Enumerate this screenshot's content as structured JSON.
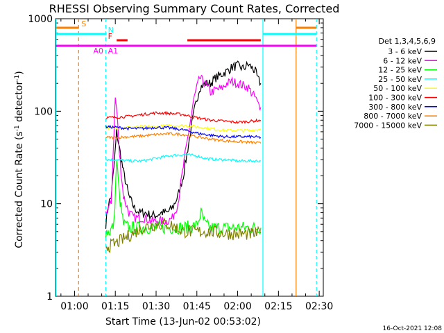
{
  "chart_data": {
    "type": "line",
    "title": "RHESSI Observing Summary Count Rates, Corrected",
    "xlabel": "Start Time (13-Jun-02 00:53:02)",
    "ylabel_main": "Corrected Count Rate (s",
    "ylabel_sup1": "-1",
    "ylabel_mid": " detector",
    "ylabel_sup2": "-1",
    "ylabel_end": ")",
    "yscale": "log",
    "ylim": [
      1,
      1000
    ],
    "xlim_minutes": [
      53.0,
      151.5
    ],
    "yticks": [
      {
        "value": 1,
        "label": "1"
      },
      {
        "value": 10,
        "label": "10"
      },
      {
        "value": 100,
        "label": "100"
      },
      {
        "value": 1000,
        "label": "1000"
      }
    ],
    "xticks": [
      {
        "minutes": 60,
        "label": "01:00"
      },
      {
        "minutes": 75,
        "label": "01:15"
      },
      {
        "minutes": 90,
        "label": "01:30"
      },
      {
        "minutes": 105,
        "label": "01:45"
      },
      {
        "minutes": 120,
        "label": "02:00"
      },
      {
        "minutes": 135,
        "label": "02:15"
      },
      {
        "minutes": 150,
        "label": "02:30"
      }
    ],
    "legend_title": "Det 1,3,4,5,6,9",
    "series": [
      {
        "name": "3 - 6 keV",
        "color": "#000000",
        "times": [
          71.5,
          72.5,
          73.5,
          74.5,
          75.5,
          76.5,
          78,
          80,
          82,
          84,
          86,
          88,
          90,
          92,
          94,
          96,
          98,
          100,
          102,
          104,
          106,
          108,
          110,
          112,
          114,
          116,
          118,
          120,
          122,
          124,
          125,
          126.5,
          127.5,
          128.5
        ],
        "values": [
          6,
          10,
          12,
          25,
          60,
          40,
          22,
          12,
          9,
          8,
          8,
          7.5,
          7.5,
          8,
          8,
          9,
          12,
          20,
          45,
          100,
          180,
          200,
          200,
          230,
          250,
          270,
          300,
          310,
          290,
          320,
          300,
          270,
          220,
          200
        ]
      },
      {
        "name": "6 - 12 keV",
        "color": "#ff00ff",
        "times": [
          71.5,
          72.5,
          73.5,
          74.5,
          75,
          75.7,
          76.5,
          78,
          80,
          82,
          84,
          86,
          88,
          90,
          92,
          94,
          96,
          98,
          100,
          102,
          104,
          106,
          108,
          110,
          112,
          114,
          116,
          118,
          120,
          122,
          124,
          125,
          126.5,
          127.5,
          128.5
        ],
        "values": [
          8,
          9,
          10,
          60,
          140,
          90,
          35,
          12,
          8,
          7,
          7,
          7,
          6.5,
          6.5,
          6.5,
          6.5,
          7,
          10,
          25,
          60,
          140,
          230,
          200,
          160,
          170,
          175,
          200,
          210,
          200,
          190,
          180,
          160,
          140,
          120,
          110
        ]
      },
      {
        "name": "12 - 25 keV",
        "color": "#00ff00",
        "times": [
          71.5,
          73,
          74.5,
          75.5,
          76.5,
          78,
          80,
          85,
          90,
          95,
          100,
          105,
          106.5,
          108,
          110,
          115,
          120,
          125,
          128.5
        ],
        "values": [
          5,
          5,
          6,
          30,
          12,
          6,
          5.5,
          5.5,
          5.5,
          5.5,
          5.5,
          5.8,
          8,
          6,
          5.5,
          5.5,
          5.5,
          5.5,
          5.5
        ]
      },
      {
        "name": "25 - 50 keV",
        "color": "#00ffff",
        "times": [
          71.5,
          75,
          80,
          85,
          90,
          95,
          100,
          105,
          108,
          112,
          116,
          120,
          125,
          128.5
        ],
        "values": [
          30,
          30,
          29,
          29,
          31,
          33,
          34,
          33,
          31,
          30,
          30,
          29,
          29,
          29
        ]
      },
      {
        "name": "50 - 100 keV",
        "color": "#ffff00",
        "times": [
          71.5,
          75,
          80,
          85,
          90,
          95,
          100,
          105,
          110,
          115,
          120,
          125,
          128.5
        ],
        "values": [
          66,
          66,
          67,
          68,
          68,
          70,
          70,
          68,
          65,
          62,
          62,
          62,
          64
        ]
      },
      {
        "name": "100 - 300 keV",
        "color": "#ff0000",
        "times": [
          71.5,
          75,
          80,
          85,
          90,
          95,
          100,
          105,
          110,
          115,
          120,
          125,
          128.5
        ],
        "values": [
          85,
          86,
          88,
          92,
          96,
          95,
          92,
          85,
          80,
          78,
          76,
          78,
          80
        ]
      },
      {
        "name": "300 - 800 keV",
        "color": "#0000ff",
        "times": [
          71.5,
          75,
          80,
          85,
          90,
          95,
          100,
          105,
          110,
          115,
          120,
          125,
          128.5
        ],
        "values": [
          68,
          67,
          65,
          65,
          67,
          66,
          63,
          58,
          55,
          53,
          53,
          53,
          52
        ]
      },
      {
        "name": "800 - 7000 keV",
        "color": "#ff8000",
        "times": [
          71.5,
          75,
          80,
          85,
          90,
          95,
          100,
          105,
          110,
          115,
          120,
          125,
          128.5
        ],
        "values": [
          52,
          52,
          53,
          54,
          56,
          57,
          56,
          53,
          50,
          48,
          47,
          46,
          45
        ]
      },
      {
        "name": "7000 - 15000 keV",
        "color": "#808000",
        "times": [
          71.5,
          73,
          75,
          77,
          80,
          85,
          90,
          95,
          100,
          105,
          110,
          115,
          120,
          125,
          128.5
        ],
        "values": [
          3.5,
          3.5,
          3.7,
          4,
          4.5,
          5.5,
          6,
          6,
          5,
          5,
          5,
          4.8,
          4.7,
          4.7,
          4.8
        ]
      }
    ],
    "flags": [
      {
        "label": "S",
        "color": "#ff8000",
        "row": "S",
        "intervals": [
          [
            53.2,
            61.5
          ],
          [
            141.5,
            149
          ]
        ]
      },
      {
        "label": "N",
        "color": "#00ffff",
        "row": "N",
        "intervals": [
          [
            53.2,
            71.8
          ],
          [
            129.3,
            149
          ]
        ]
      },
      {
        "label": "F",
        "color": "#ff0000",
        "row": "F",
        "intervals": [
          [
            75.5,
            79.5
          ],
          [
            101.5,
            128.5
          ]
        ]
      },
      {
        "label": "A0",
        "color": "#ff00ff",
        "row": "A0",
        "intervals": [
          [
            53.2,
            71.5
          ]
        ]
      },
      {
        "label": "A1",
        "color": "#ff00ff",
        "row": "A1",
        "intervals": [
          [
            71.5,
            149
          ]
        ]
      }
    ],
    "vlines": [
      {
        "minutes": 53.2,
        "color": "#00ffff",
        "style": "solid"
      },
      {
        "minutes": 61.5,
        "color": "#ff8000",
        "style": "dashed"
      },
      {
        "minutes": 71.5,
        "color": "#00ffff",
        "style": "dashed"
      },
      {
        "minutes": 129.3,
        "color": "#00ffff",
        "style": "solid"
      },
      {
        "minutes": 141.5,
        "color": "#ff8000",
        "style": "solid"
      },
      {
        "minutes": 149,
        "color": "#00ffff",
        "style": "dashed"
      }
    ]
  },
  "timestamp": "16-Oct-2021 12:08"
}
